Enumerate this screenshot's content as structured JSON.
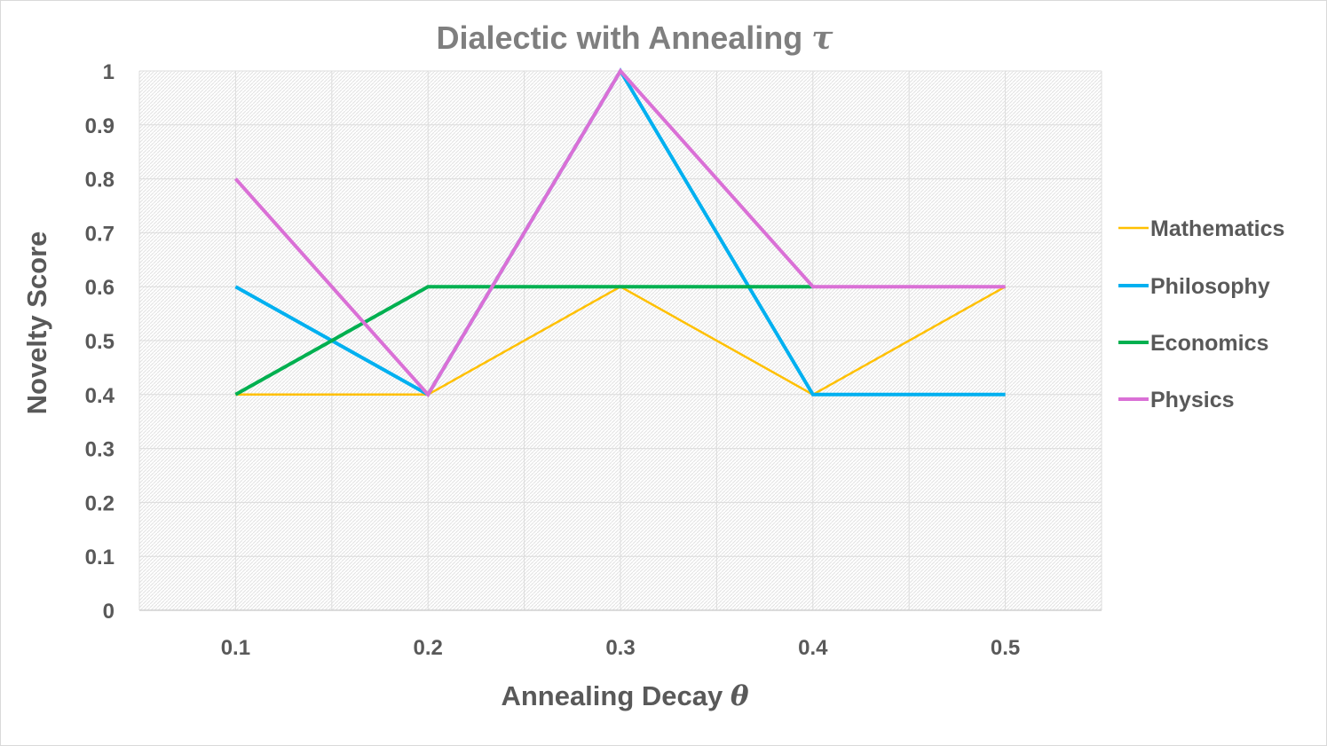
{
  "chart_data": {
    "type": "line",
    "title": "Dialectic with Annealing ",
    "title_symbol": "τ",
    "xlabel": "Annealing Decay ",
    "xlabel_symbol": "θ",
    "ylabel": "Novelty Score",
    "categories": [
      "0.1",
      "0.2",
      "0.3",
      "0.4",
      "0.5"
    ],
    "ylim": [
      0,
      1
    ],
    "yticks": [
      "0",
      "0.1",
      "0.2",
      "0.3",
      "0.4",
      "0.5",
      "0.6",
      "0.7",
      "0.8",
      "0.9",
      "1"
    ],
    "grid": true,
    "legend_position": "right",
    "series": [
      {
        "name": "Mathematics",
        "color": "#ffc000",
        "values": [
          0.4,
          0.4,
          0.6,
          0.4,
          0.6
        ]
      },
      {
        "name": "Philosophy",
        "color": "#00b0f0",
        "values": [
          0.6,
          0.4,
          1.0,
          0.4,
          0.4
        ]
      },
      {
        "name": "Economics",
        "color": "#00b050",
        "values": [
          0.4,
          0.6,
          0.6,
          0.6,
          null
        ]
      },
      {
        "name": "Physics",
        "color": "#da70d6",
        "values": [
          0.8,
          0.4,
          1.0,
          0.6,
          0.6
        ]
      }
    ]
  }
}
